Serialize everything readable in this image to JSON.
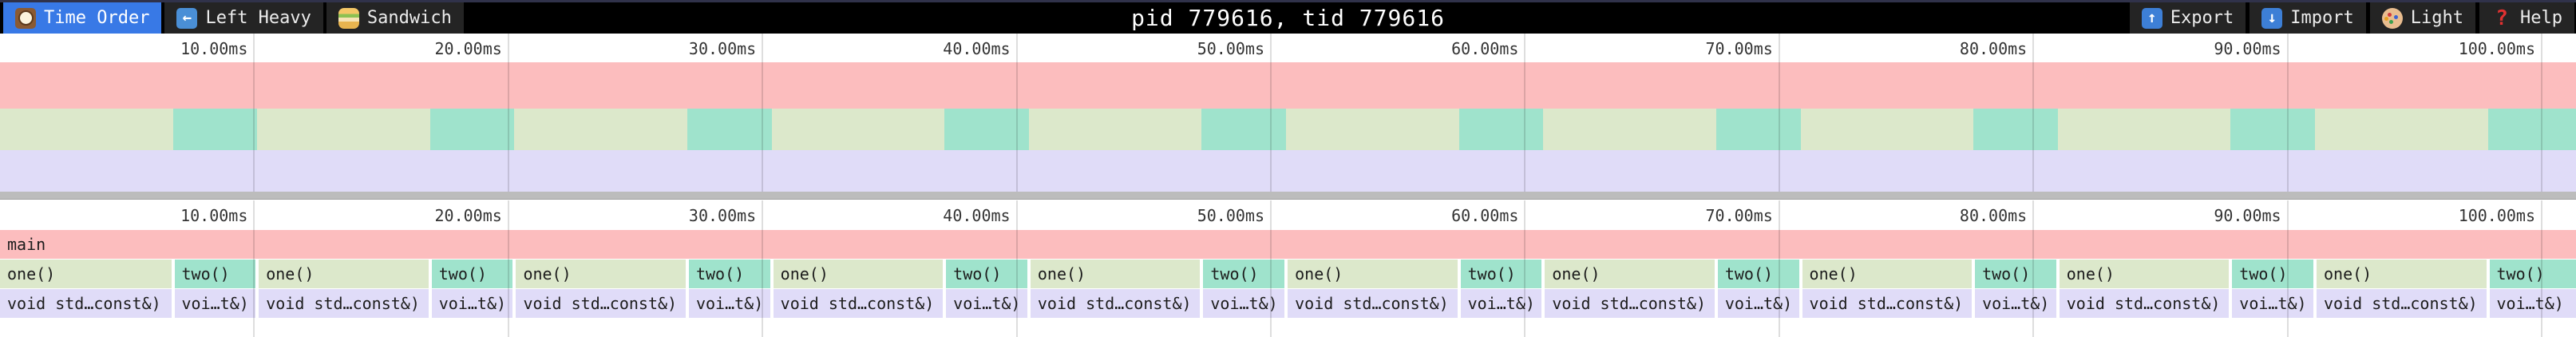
{
  "toolbar": {
    "tabs": [
      {
        "label": "Time Order",
        "icon": "clock",
        "active": true
      },
      {
        "label": "Left Heavy",
        "icon": "left-arrow",
        "active": false
      },
      {
        "label": "Sandwich",
        "icon": "sandwich",
        "active": false
      }
    ],
    "title": "pid 779616, tid 779616",
    "buttons": [
      {
        "label": "Export",
        "icon": "export-arrow"
      },
      {
        "label": "Import",
        "icon": "import-arrow"
      },
      {
        "label": "Light",
        "icon": "palette"
      },
      {
        "label": "Help",
        "icon": "question"
      }
    ]
  },
  "timeline": {
    "unit": "ms",
    "total_ms": 101.35,
    "ticks": [
      {
        "ms": 10,
        "label": "10.00ms"
      },
      {
        "ms": 20,
        "label": "20.00ms"
      },
      {
        "ms": 30,
        "label": "30.00ms"
      },
      {
        "ms": 40,
        "label": "40.00ms"
      },
      {
        "ms": 50,
        "label": "50.00ms"
      },
      {
        "ms": 60,
        "label": "60.00ms"
      },
      {
        "ms": 70,
        "label": "70.00ms"
      },
      {
        "ms": 80,
        "label": "80.00ms"
      },
      {
        "ms": 90,
        "label": "90.00ms"
      },
      {
        "ms": 100,
        "label": "100.00ms"
      }
    ]
  },
  "flamegraph": {
    "root": {
      "label": "main"
    },
    "one_label": "one()",
    "two_label": "two()",
    "one_detail": "void std…const&)",
    "two_detail": "voi…t&)",
    "cycles": [
      {
        "one_start_ms": 0.0,
        "one_end_ms": 6.8,
        "two_end_ms": 10.12
      },
      {
        "one_start_ms": 10.12,
        "one_end_ms": 16.92,
        "two_end_ms": 20.24
      },
      {
        "one_start_ms": 20.24,
        "one_end_ms": 27.04,
        "two_end_ms": 30.36
      },
      {
        "one_start_ms": 30.36,
        "one_end_ms": 37.16,
        "two_end_ms": 40.48
      },
      {
        "one_start_ms": 40.48,
        "one_end_ms": 47.28,
        "two_end_ms": 50.6
      },
      {
        "one_start_ms": 50.6,
        "one_end_ms": 57.4,
        "two_end_ms": 60.72
      },
      {
        "one_start_ms": 60.72,
        "one_end_ms": 67.52,
        "two_end_ms": 70.84
      },
      {
        "one_start_ms": 70.84,
        "one_end_ms": 77.64,
        "two_end_ms": 80.96
      },
      {
        "one_start_ms": 80.96,
        "one_end_ms": 87.76,
        "two_end_ms": 91.08
      },
      {
        "one_start_ms": 91.08,
        "one_end_ms": 97.88,
        "two_end_ms": 101.35
      }
    ]
  },
  "colors": {
    "accent_tab": "#3879e6",
    "toolbar_bg": "#000000",
    "frame_pink": "#fcbdbe",
    "frame_olive": "#dce8cb",
    "frame_teal": "#9fe3cc",
    "frame_lavender": "#e0dcf8",
    "separator": "#bcbcbc"
  }
}
